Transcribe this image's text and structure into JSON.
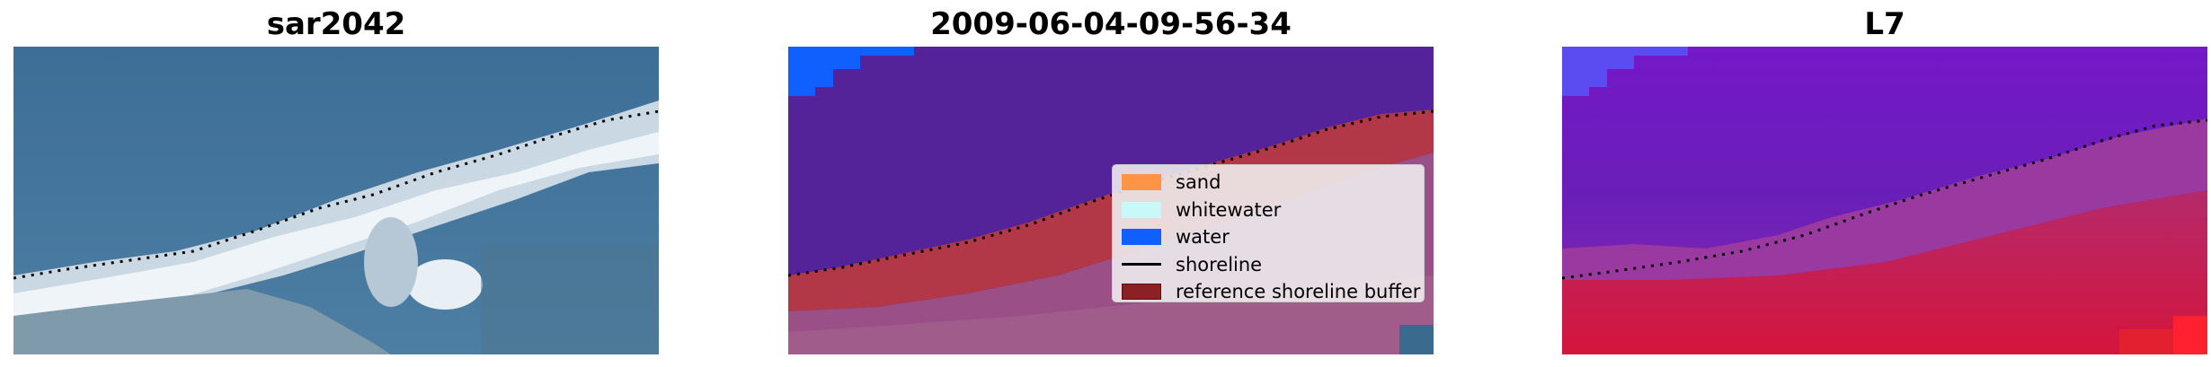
{
  "panels": [
    {
      "title": "sar2042"
    },
    {
      "title": "2009-06-04-09-56-34"
    },
    {
      "title": "L7"
    }
  ],
  "legend": {
    "items": [
      {
        "label": "sand",
        "color": "#ff9444"
      },
      {
        "label": "whitewater",
        "color": "#c8f8f8"
      },
      {
        "label": "water",
        "color": "#1060ff"
      },
      {
        "label": "shoreline",
        "color": "#000000"
      },
      {
        "label": "reference shoreline buffer",
        "color": "#8b2025"
      }
    ]
  },
  "colors": {
    "rgb_water": "#3f6f96",
    "rgb_foam": "#e6eef2",
    "class_water": "#54239a",
    "class_water_edge": "#1060ff",
    "class_buffer": "#b23848",
    "class_land": "#9a4f86",
    "mndwi_high": "#7a1ec0",
    "mndwi_low": "#d01040"
  }
}
